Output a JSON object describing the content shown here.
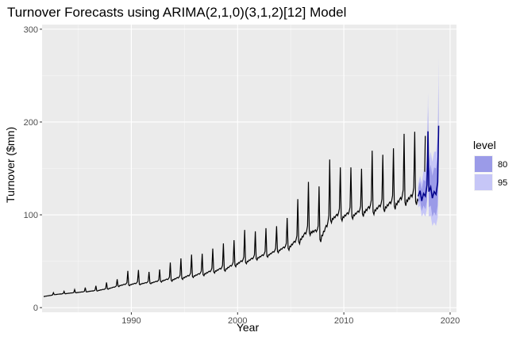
{
  "chart_data": {
    "type": "line",
    "title": "Turnover Forecasts using ARIMA(2,1,0)(3,1,2)[12] Model",
    "xlabel": "Year",
    "ylabel": "Turnover ($mn)",
    "xlim": [
      1981.6,
      2020.6
    ],
    "ylim": [
      -5,
      305
    ],
    "x_ticks": [
      1990,
      2000,
      2010,
      2020
    ],
    "y_ticks": [
      0,
      100,
      200,
      300
    ],
    "grid": true,
    "legend": {
      "title": "level",
      "position": "right",
      "entries": [
        {
          "label": "80",
          "color": "#9b9be8"
        },
        {
          "label": "95",
          "color": "#c6c6f7"
        }
      ]
    },
    "series": [
      {
        "name": "",
        "color": "#000000",
        "annual_points": [
          {
            "year": 1982,
            "base": 12,
            "peak": 15
          },
          {
            "year": 1983,
            "base": 14,
            "peak": 17
          },
          {
            "year": 1984,
            "base": 15,
            "peak": 19
          },
          {
            "year": 1985,
            "base": 16,
            "peak": 21
          },
          {
            "year": 1986,
            "base": 17,
            "peak": 23
          },
          {
            "year": 1987,
            "base": 18,
            "peak": 26
          },
          {
            "year": 1988,
            "base": 20,
            "peak": 29
          },
          {
            "year": 1989,
            "base": 23,
            "peak": 39
          },
          {
            "year": 1990,
            "base": 24,
            "peak": 40
          },
          {
            "year": 1991,
            "base": 25,
            "peak": 38
          },
          {
            "year": 1992,
            "base": 26,
            "peak": 40
          },
          {
            "year": 1993,
            "base": 28,
            "peak": 48
          },
          {
            "year": 1994,
            "base": 29,
            "peak": 52
          },
          {
            "year": 1995,
            "base": 31,
            "peak": 56
          },
          {
            "year": 1996,
            "base": 33,
            "peak": 57
          },
          {
            "year": 1997,
            "base": 35,
            "peak": 62
          },
          {
            "year": 1998,
            "base": 38,
            "peak": 68
          },
          {
            "year": 1999,
            "base": 40,
            "peak": 70
          },
          {
            "year": 2000,
            "base": 45,
            "peak": 82
          },
          {
            "year": 2001,
            "base": 48,
            "peak": 80
          },
          {
            "year": 2002,
            "base": 52,
            "peak": 84
          },
          {
            "year": 2003,
            "base": 55,
            "peak": 85
          },
          {
            "year": 2004,
            "base": 60,
            "peak": 95
          },
          {
            "year": 2005,
            "base": 63,
            "peak": 113
          },
          {
            "year": 2006,
            "base": 70,
            "peak": 130
          },
          {
            "year": 2007,
            "base": 80,
            "peak": 135
          },
          {
            "year": 2008,
            "base": 72,
            "peak": 148
          },
          {
            "year": 2009,
            "base": 93,
            "peak": 150
          },
          {
            "year": 2010,
            "base": 95,
            "peak": 150
          },
          {
            "year": 2011,
            "base": 97,
            "peak": 148
          },
          {
            "year": 2012,
            "base": 100,
            "peak": 168
          },
          {
            "year": 2013,
            "base": 102,
            "peak": 163
          },
          {
            "year": 2014,
            "base": 105,
            "peak": 170
          },
          {
            "year": 2015,
            "base": 108,
            "peak": 185
          },
          {
            "year": 2016,
            "base": 112,
            "peak": 189
          },
          {
            "year": 2017,
            "base": 113,
            "peak": 185
          }
        ]
      }
    ],
    "forecast": {
      "color": "#00008b",
      "points": [
        {
          "x": 2017.0,
          "mean": 120,
          "lo80": 112,
          "hi80": 129,
          "lo95": 108,
          "hi95": 133
        },
        {
          "x": 2017.17,
          "mean": 126,
          "lo80": 116,
          "hi80": 136,
          "lo95": 110,
          "hi95": 142
        },
        {
          "x": 2017.33,
          "mean": 115,
          "lo80": 104,
          "hi80": 127,
          "lo95": 98,
          "hi95": 134
        },
        {
          "x": 2017.5,
          "mean": 123,
          "lo80": 110,
          "hi80": 138,
          "lo95": 102,
          "hi95": 147
        },
        {
          "x": 2017.67,
          "mean": 120,
          "lo80": 106,
          "hi80": 136,
          "lo95": 98,
          "hi95": 146
        },
        {
          "x": 2017.83,
          "mean": 132,
          "lo80": 116,
          "hi80": 150,
          "lo95": 107,
          "hi95": 161
        },
        {
          "x": 2017.92,
          "mean": 190,
          "lo80": 166,
          "hi80": 216,
          "lo95": 153,
          "hi95": 232
        },
        {
          "x": 2018.0,
          "mean": 125,
          "lo80": 108,
          "hi80": 145,
          "lo95": 98,
          "hi95": 158
        },
        {
          "x": 2018.17,
          "mean": 130,
          "lo80": 110,
          "hi80": 154,
          "lo95": 99,
          "hi95": 168
        },
        {
          "x": 2018.33,
          "mean": 118,
          "lo80": 98,
          "hi80": 142,
          "lo95": 88,
          "hi95": 157
        },
        {
          "x": 2018.5,
          "mean": 125,
          "lo80": 103,
          "hi80": 151,
          "lo95": 92,
          "hi95": 168
        },
        {
          "x": 2018.67,
          "mean": 122,
          "lo80": 99,
          "hi80": 150,
          "lo95": 88,
          "hi95": 168
        },
        {
          "x": 2018.83,
          "mean": 135,
          "lo80": 110,
          "hi80": 165,
          "lo95": 97,
          "hi95": 185
        },
        {
          "x": 2018.92,
          "mean": 196,
          "lo80": 160,
          "hi80": 240,
          "lo95": 142,
          "hi95": 268
        }
      ]
    }
  }
}
